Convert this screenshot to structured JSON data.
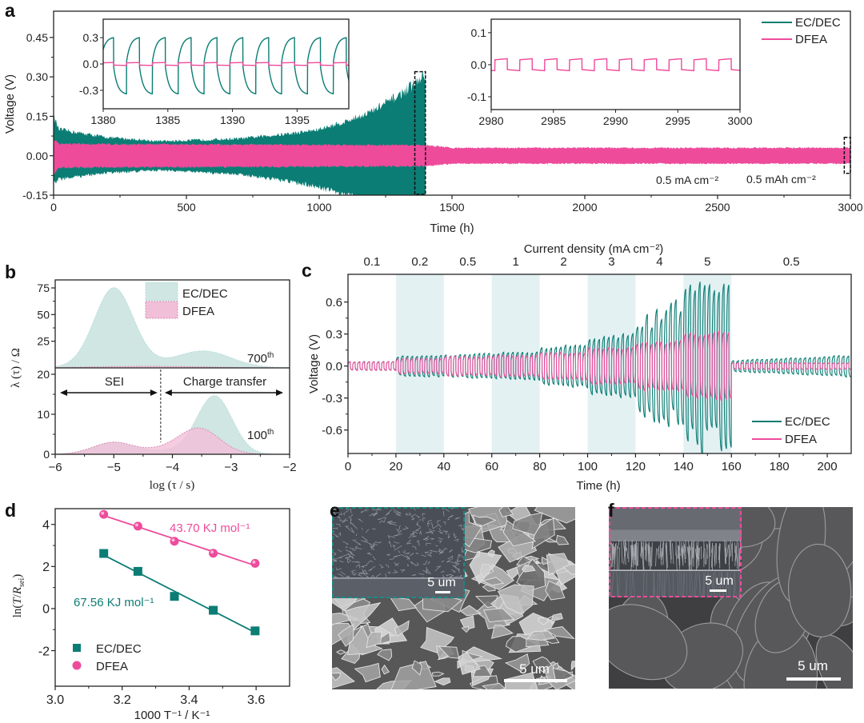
{
  "colors": {
    "ecdec": "#0b7d74",
    "dfea": "#ee4b9b",
    "ecdec_fill": "#cfe6e3",
    "dfea_fill": "#f2bfd8",
    "band": "#e4f1f3"
  },
  "panel_labels": {
    "a": "a",
    "b": "b",
    "c": "c",
    "d": "d",
    "e": "e",
    "f": "f"
  },
  "chart_data": [
    {
      "panel": "a",
      "type": "line",
      "xlabel": "Time (h)",
      "ylabel": "Voltage (V)",
      "xlim": [
        0,
        3000
      ],
      "ylim": [
        -0.15,
        0.55
      ],
      "xticks": [
        0,
        500,
        1000,
        1500,
        2000,
        2500,
        3000
      ],
      "xtick_labels": [
        "0",
        "500",
        "1000",
        "1500",
        "2000",
        "2500",
        "3000"
      ],
      "yticks": [
        -0.15,
        0,
        0.15,
        0.3,
        0.45
      ],
      "ytick_labels": [
        "-0.15",
        "0.00",
        "0.15",
        "0.30",
        "0.45"
      ],
      "legend": {
        "position": "top-right",
        "entries": [
          "EC/DEC",
          "DFEA"
        ]
      },
      "series": [
        {
          "name": "EC/DEC",
          "t": [
            0,
            20,
            200,
            400,
            700,
            900,
            1000,
            1100,
            1200,
            1300,
            1380,
            1400
          ],
          "upper": [
            0.15,
            0.1,
            0.07,
            0.055,
            0.065,
            0.085,
            0.1,
            0.13,
            0.17,
            0.23,
            0.29,
            0.31
          ],
          "lower": [
            -0.11,
            -0.09,
            -0.065,
            -0.055,
            -0.07,
            -0.1,
            -0.12,
            -0.15,
            -0.17,
            -0.19,
            -0.2,
            -0.2
          ]
        },
        {
          "name": "DFEA",
          "t": [
            0,
            20,
            1400,
            1500,
            3000
          ],
          "upper": [
            0.065,
            0.045,
            0.04,
            0.03,
            0.03
          ],
          "lower": [
            -0.07,
            -0.045,
            -0.04,
            -0.03,
            -0.03
          ]
        }
      ],
      "annotations": [
        "0.5 mA cm⁻²",
        "0.5 mAh cm⁻²"
      ],
      "zoom_windows": [
        {
          "x": [
            1360,
            1400
          ],
          "y": [
            -0.15,
            0.32
          ]
        },
        {
          "x": [
            2977,
            3000
          ],
          "y": [
            -0.07,
            0.07
          ]
        }
      ],
      "insets": [
        {
          "xlim": [
            1380,
            1399
          ],
          "ylim": [
            -0.51,
            0.51
          ],
          "xticks": [
            1380,
            1385,
            1390,
            1395
          ],
          "xtick_labels": [
            "1380",
            "1385",
            "1390",
            "1395"
          ],
          "yticks": [
            -0.3,
            0,
            0.3
          ],
          "ytick_labels": [
            "-0.3",
            "0.0",
            "0.3"
          ],
          "series": [
            {
              "name": "EC/DEC",
              "shape": "exp-rise",
              "amplitude_pos": 0.3,
              "amplitude_neg": 0.34,
              "half_period_h": 1,
              "first_positive_start": 1379.8
            },
            {
              "name": "DFEA",
              "shape": "square",
              "amplitude_pos": 0.015,
              "amplitude_neg": 0.015,
              "half_period_h": 1,
              "first_positive_start": 1379.8
            }
          ]
        },
        {
          "xlim": [
            2980,
            3000
          ],
          "ylim": [
            -0.14,
            0.142
          ],
          "xticks": [
            2980,
            2985,
            2990,
            2995,
            3000
          ],
          "xtick_labels": [
            "2980",
            "2985",
            "2990",
            "2995",
            "3000"
          ],
          "yticks": [
            -0.1,
            0,
            0.1
          ],
          "ytick_labels": [
            "-0.1",
            "0.0",
            "0.1"
          ],
          "series": [
            {
              "name": "DFEA",
              "shape": "square",
              "amplitude_pos": 0.017,
              "amplitude_neg": 0.017,
              "half_period_h": 1,
              "first_positive_start": 2980.3
            }
          ]
        }
      ]
    },
    {
      "panel": "b",
      "type": "area",
      "xlabel": "log (τ / s)",
      "ylabel": "λ (τ) / Ω",
      "xlim": [
        -6,
        -2
      ],
      "xticks": [
        -6,
        -5,
        -4,
        -3,
        -2
      ],
      "xtick_labels": [
        "−6",
        "−5",
        "−4",
        "−3",
        "−2"
      ],
      "legend": {
        "position": "top-center",
        "entries": [
          "EC/DEC",
          "DFEA"
        ]
      },
      "subplots": [
        {
          "cycle": "700",
          "cycle_suffix": "th",
          "ylim": [
            0,
            82.5
          ],
          "yticks": [
            25,
            50,
            75
          ],
          "ytick_labels": [
            "25",
            "50",
            "75"
          ],
          "series": [
            {
              "name": "EC/DEC",
              "peaks": [
                {
                  "center": -5.0,
                  "height": 73,
                  "sigma": 0.33
                },
                {
                  "center": -3.45,
                  "height": 14,
                  "sigma": 0.45
                },
                {
                  "center": -4.3,
                  "height": 3,
                  "sigma": 0.9
                }
              ]
            },
            {
              "name": "DFEA",
              "peaks": [
                {
                  "center": -4.4,
                  "height": 1.5,
                  "sigma": 0.9
                }
              ]
            }
          ]
        },
        {
          "cycle": "100",
          "cycle_suffix": "th",
          "ylim": [
            0,
            21.6
          ],
          "yticks": [
            0,
            10,
            20
          ],
          "ytick_labels": [
            "0",
            "10",
            "20"
          ],
          "series": [
            {
              "name": "EC/DEC",
              "peaks": [
                {
                  "center": -5.0,
                  "height": 3,
                  "sigma": 0.35
                },
                {
                  "center": -3.28,
                  "height": 14.5,
                  "sigma": 0.3
                },
                {
                  "center": -4.0,
                  "height": 0.8,
                  "sigma": 0.4
                }
              ]
            },
            {
              "name": "DFEA",
              "peaks": [
                {
                  "center": -5.0,
                  "height": 3,
                  "sigma": 0.35
                },
                {
                  "center": -3.55,
                  "height": 6.5,
                  "sigma": 0.35
                },
                {
                  "center": -4.2,
                  "height": 0.8,
                  "sigma": 0.3
                }
              ]
            }
          ]
        }
      ],
      "annotations": {
        "sei": "SEI",
        "charge_transfer": "Charge transfer",
        "boundary_x": -4.2
      }
    },
    {
      "panel": "c",
      "type": "line",
      "xlabel": "Time (h)",
      "ylabel": "Voltage (V)",
      "top_label": "Current density (mA cm⁻²)",
      "xlim": [
        0,
        210
      ],
      "ylim": [
        -0.82,
        0.86
      ],
      "xticks": [
        0,
        20,
        40,
        60,
        80,
        100,
        120,
        140,
        160,
        180,
        200
      ],
      "xtick_labels": [
        "0",
        "20",
        "40",
        "60",
        "80",
        "100",
        "120",
        "140",
        "160",
        "180",
        "200"
      ],
      "yticks": [
        -0.6,
        -0.3,
        0,
        0.3,
        0.6
      ],
      "ytick_labels": [
        "-0.6",
        "-0.3",
        "0.0",
        "0.3",
        "0.6"
      ],
      "legend": {
        "position": "bottom-right",
        "entries": [
          "EC/DEC",
          "DFEA"
        ]
      },
      "segments": [
        {
          "start": 0,
          "end": 20,
          "current_density": "0.1",
          "shaded": false,
          "ecdec_amp": [
            0.04,
            0.04
          ],
          "dfea_amp": [
            0.04,
            0.04
          ]
        },
        {
          "start": 20,
          "end": 40,
          "current_density": "0.2",
          "shaded": true,
          "ecdec_amp": [
            0.09,
            0.1
          ],
          "dfea_amp": [
            0.07,
            0.07
          ]
        },
        {
          "start": 40,
          "end": 60,
          "current_density": "0.5",
          "shaded": false,
          "ecdec_amp": [
            0.1,
            0.12
          ],
          "dfea_amp": [
            0.09,
            0.09
          ]
        },
        {
          "start": 60,
          "end": 80,
          "current_density": "1",
          "shaded": true,
          "ecdec_amp": [
            0.12,
            0.13
          ],
          "dfea_amp": [
            0.1,
            0.1
          ]
        },
        {
          "start": 80,
          "end": 100,
          "current_density": "2",
          "shaded": false,
          "ecdec_amp": [
            0.17,
            0.2
          ],
          "dfea_amp": [
            0.13,
            0.13
          ]
        },
        {
          "start": 100,
          "end": 120,
          "current_density": "3",
          "shaded": true,
          "ecdec_amp": [
            0.26,
            0.3
          ],
          "dfea_amp": [
            0.17,
            0.17
          ]
        },
        {
          "start": 120,
          "end": 140,
          "current_density": "4",
          "shaded": false,
          "ecdec_amp": [
            0.4,
            0.58
          ],
          "dfea_amp": [
            0.22,
            0.24
          ]
        },
        {
          "start": 140,
          "end": 160,
          "current_density": "5",
          "shaded": true,
          "ecdec_amp": [
            0.72,
            0.78
          ],
          "dfea_amp": [
            0.3,
            0.32
          ]
        },
        {
          "start": 160,
          "end": 210,
          "current_density": "0.5",
          "shaded": false,
          "ecdec_amp": [
            0.05,
            0.1
          ],
          "dfea_amp": [
            0.03,
            0.03
          ]
        }
      ],
      "period_h": 2
    },
    {
      "panel": "d",
      "type": "scatter",
      "xlabel": "1000 T⁻¹ / K⁻¹",
      "ylabel_parts": [
        "ln(",
        "T",
        "/",
        "R",
        "sei",
        ")"
      ],
      "xlim": [
        3.0,
        3.7
      ],
      "ylim": [
        -3.69,
        4.75
      ],
      "xticks": [
        3.0,
        3.2,
        3.4,
        3.6
      ],
      "xtick_labels": [
        "3.0",
        "3.2",
        "3.4",
        "3.6"
      ],
      "yticks": [
        -2,
        0,
        2,
        4
      ],
      "ytick_labels": [
        "-2",
        "0",
        "2",
        "4"
      ],
      "legend": {
        "position": "bottom-left",
        "entries": [
          "EC/DEC",
          "DFEA"
        ]
      },
      "series": [
        {
          "name": "EC/DEC",
          "marker": "square",
          "x": [
            3.145,
            3.247,
            3.356,
            3.472,
            3.597
          ],
          "y": [
            2.62,
            1.77,
            0.58,
            -0.08,
            -1.06
          ],
          "fit_label": "67.56 KJ mol⁻¹"
        },
        {
          "name": "DFEA",
          "marker": "circle",
          "x": [
            3.145,
            3.247,
            3.356,
            3.472,
            3.597
          ],
          "y": [
            4.48,
            3.92,
            3.2,
            2.63,
            2.15
          ],
          "fit_label": "43.70 KJ mol⁻¹"
        }
      ]
    }
  ],
  "images": [
    {
      "panel": "e",
      "scale_bar": "5 um",
      "inset_scale_bar": "5 um"
    },
    {
      "panel": "f",
      "scale_bar": "5 um",
      "inset_scale_bar": "5 um"
    }
  ]
}
